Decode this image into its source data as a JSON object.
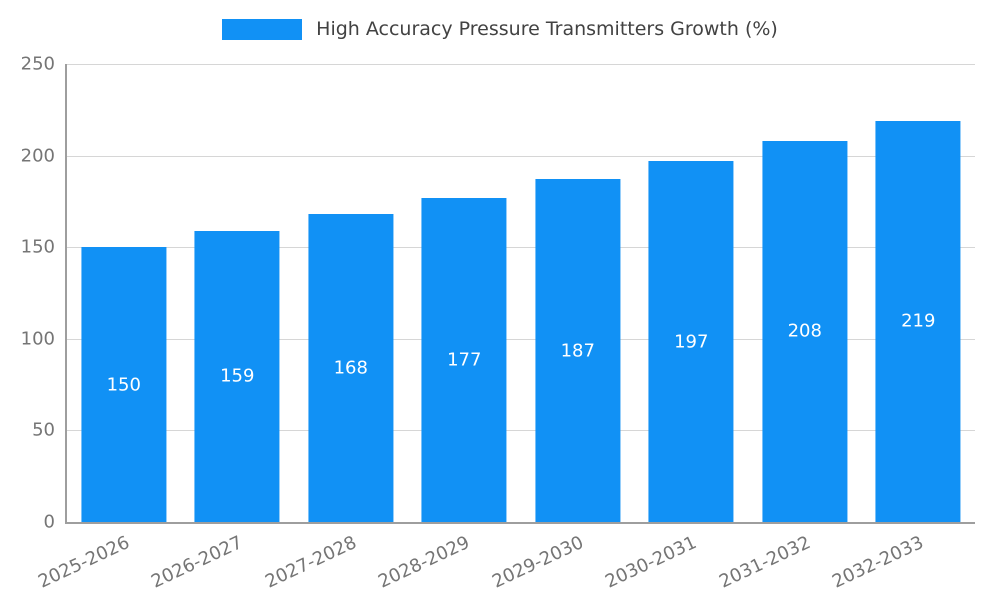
{
  "chart_data": {
    "type": "bar",
    "title": "High Accuracy Pressure Transmitters Growth (%)",
    "categories": [
      "2025-2026",
      "2026-2027",
      "2027-2028",
      "2028-2029",
      "2029-2030",
      "2030-2031",
      "2031-2032",
      "2032-2033"
    ],
    "values": [
      150,
      159,
      168,
      177,
      187,
      197,
      208,
      219
    ],
    "xlabel": "",
    "ylabel": "",
    "ylim": [
      0,
      250
    ],
    "yticks": [
      0,
      50,
      100,
      150,
      200,
      250
    ],
    "grid": true,
    "legend_position": "top",
    "bar_color": "#1191f5",
    "value_label_color": "#ffffff",
    "value_labels_shown": true
  },
  "colors": {
    "bar": "#1191f5",
    "legend_text": "#424242",
    "tick_text": "#757575",
    "gridline": "#d6d6d6",
    "axis_line": "#9e9e9e",
    "background": "#ffffff"
  }
}
